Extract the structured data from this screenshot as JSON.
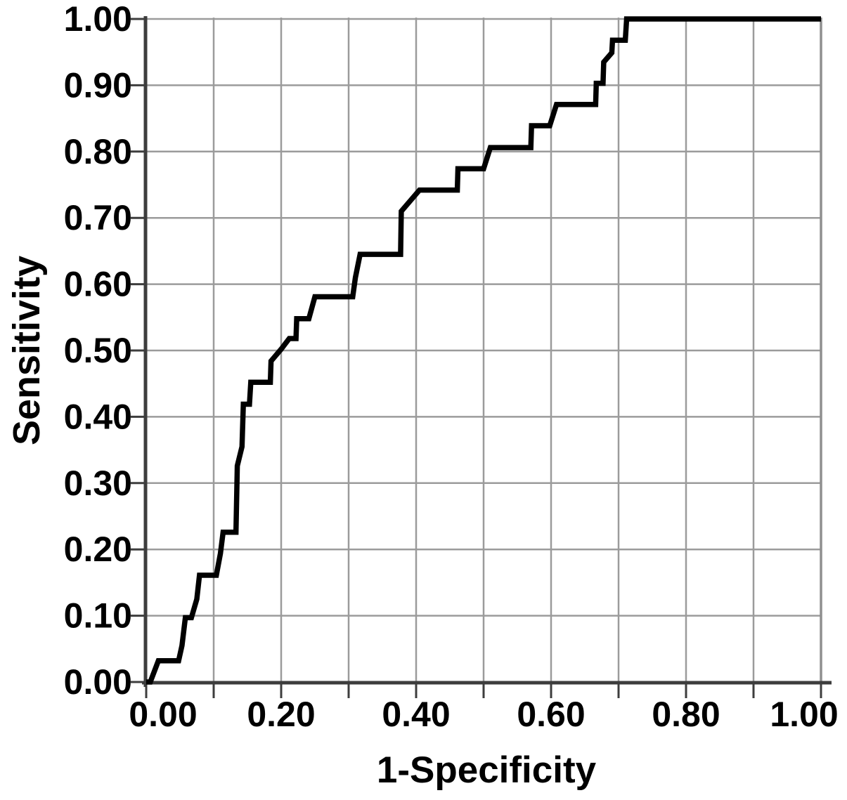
{
  "chart_data": {
    "type": "line",
    "variant": "roc-step-curve",
    "title": "",
    "xlabel": "1-Specificity",
    "ylabel": "Sensitivity",
    "xlim": [
      0.0,
      1.0
    ],
    "ylim": [
      0.0,
      1.0
    ],
    "grid": true,
    "grid_step": 0.1,
    "legend": "none",
    "x_ticks": [
      0.0,
      0.1,
      0.2,
      0.3,
      0.4,
      0.5,
      0.6,
      0.7,
      0.8,
      0.9,
      1.0
    ],
    "y_ticks": [
      0.0,
      0.1,
      0.2,
      0.3,
      0.4,
      0.5,
      0.6,
      0.7,
      0.8,
      0.9,
      1.0
    ],
    "x_tick_labels": [
      {
        "v": 0.0,
        "t": "0.00"
      },
      {
        "v": 0.2,
        "t": "0.20"
      },
      {
        "v": 0.4,
        "t": "0.40"
      },
      {
        "v": 0.6,
        "t": "0.60"
      },
      {
        "v": 0.8,
        "t": "0.80"
      },
      {
        "v": 1.0,
        "t": "1.00"
      }
    ],
    "y_tick_labels": [
      {
        "v": 0.0,
        "t": "0.00"
      },
      {
        "v": 0.1,
        "t": "0.10"
      },
      {
        "v": 0.2,
        "t": "0.20"
      },
      {
        "v": 0.3,
        "t": "0.30"
      },
      {
        "v": 0.4,
        "t": "0.40"
      },
      {
        "v": 0.5,
        "t": "0.50"
      },
      {
        "v": 0.6,
        "t": "0.60"
      },
      {
        "v": 0.7,
        "t": "0.70"
      },
      {
        "v": 0.8,
        "t": "0.80"
      },
      {
        "v": 0.9,
        "t": "0.90"
      },
      {
        "v": 1.0,
        "t": "1.00"
      }
    ],
    "colors": {
      "curve": "#000000",
      "grid": "#9b9b9b",
      "axis": "#3d3d3d",
      "frame_right": "#8f8f8f",
      "text": "#000000",
      "background": "#ffffff"
    },
    "series": [
      {
        "name": "ROC curve",
        "points": [
          [
            0.0,
            0.0
          ],
          [
            0.006,
            0.0
          ],
          [
            0.018,
            0.032
          ],
          [
            0.048,
            0.032
          ],
          [
            0.053,
            0.055
          ],
          [
            0.058,
            0.097
          ],
          [
            0.067,
            0.097
          ],
          [
            0.075,
            0.125
          ],
          [
            0.079,
            0.161
          ],
          [
            0.104,
            0.161
          ],
          [
            0.11,
            0.194
          ],
          [
            0.114,
            0.226
          ],
          [
            0.133,
            0.226
          ],
          [
            0.135,
            0.326
          ],
          [
            0.142,
            0.355
          ],
          [
            0.144,
            0.419
          ],
          [
            0.153,
            0.419
          ],
          [
            0.155,
            0.452
          ],
          [
            0.184,
            0.452
          ],
          [
            0.185,
            0.484
          ],
          [
            0.2,
            0.502
          ],
          [
            0.212,
            0.518
          ],
          [
            0.222,
            0.518
          ],
          [
            0.223,
            0.548
          ],
          [
            0.241,
            0.548
          ],
          [
            0.25,
            0.581
          ],
          [
            0.306,
            0.581
          ],
          [
            0.31,
            0.61
          ],
          [
            0.317,
            0.645
          ],
          [
            0.377,
            0.645
          ],
          [
            0.378,
            0.71
          ],
          [
            0.405,
            0.742
          ],
          [
            0.461,
            0.742
          ],
          [
            0.462,
            0.774
          ],
          [
            0.5,
            0.774
          ],
          [
            0.51,
            0.806
          ],
          [
            0.57,
            0.806
          ],
          [
            0.571,
            0.839
          ],
          [
            0.598,
            0.839
          ],
          [
            0.608,
            0.871
          ],
          [
            0.666,
            0.871
          ],
          [
            0.667,
            0.903
          ],
          [
            0.677,
            0.903
          ],
          [
            0.678,
            0.935
          ],
          [
            0.69,
            0.949
          ],
          [
            0.691,
            0.968
          ],
          [
            0.71,
            0.968
          ],
          [
            0.712,
            1.0
          ],
          [
            1.0,
            1.0
          ]
        ]
      }
    ]
  }
}
